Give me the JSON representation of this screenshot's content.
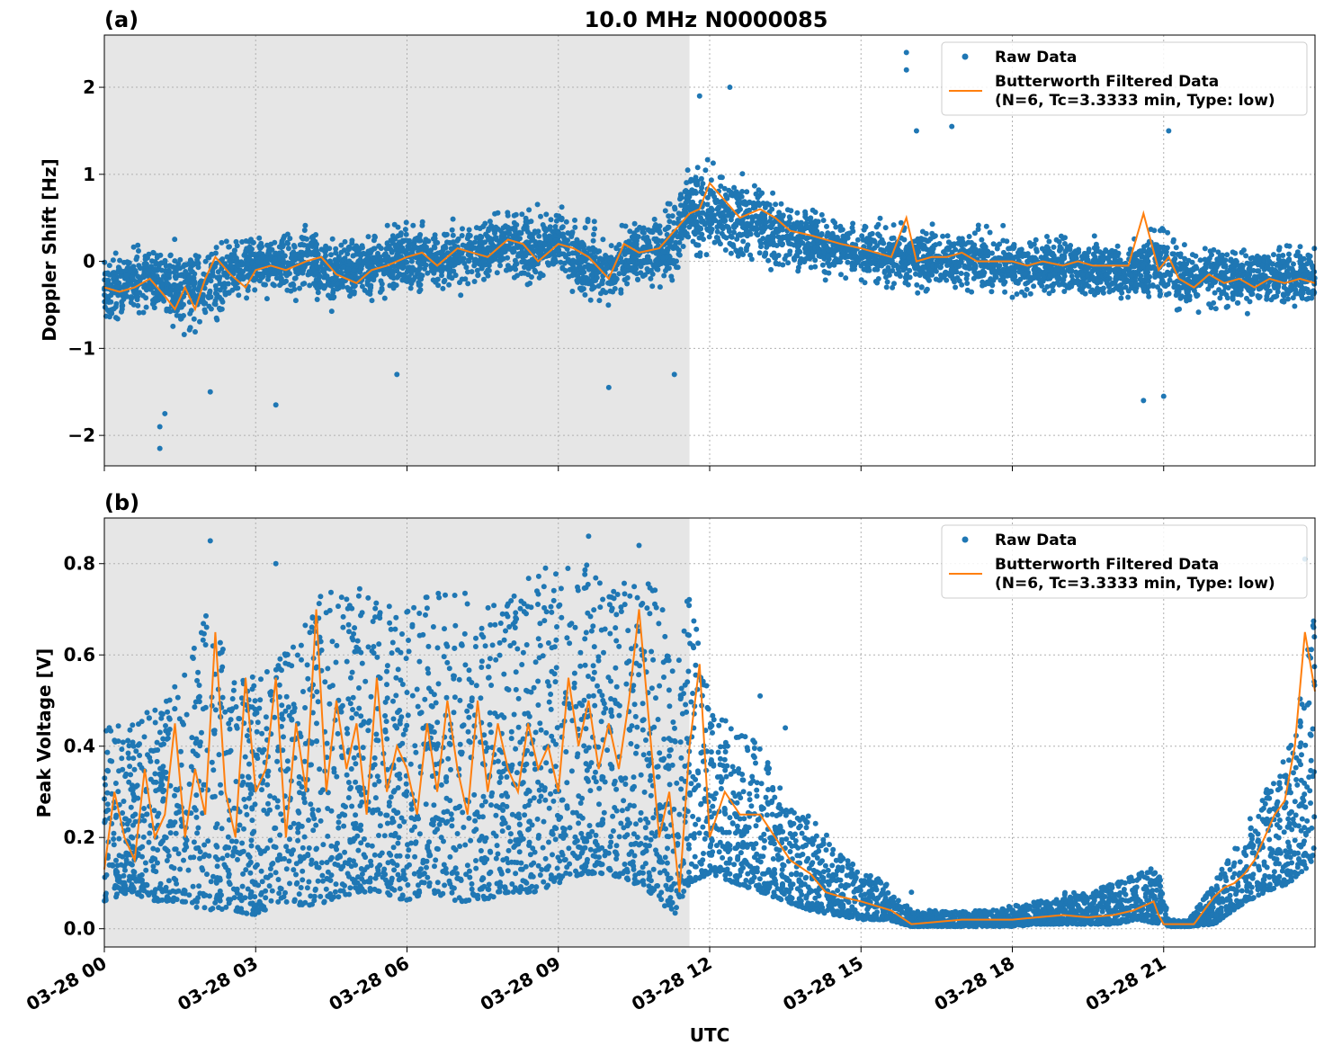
{
  "colors": {
    "raw": "#1f77b4",
    "filtered": "#ff7f0e",
    "night_shade": "#e6e6e6",
    "grid": "#b0b0b0"
  },
  "figure": {
    "title": "10.0 MHz N0000085",
    "xlabel": "UTC",
    "x_tick_labels": [
      "03-28 00",
      "03-28 03",
      "03-28 06",
      "03-28 09",
      "03-28 12",
      "03-28 15",
      "03-28 18",
      "03-28 21"
    ]
  },
  "legend": {
    "raw_label": "Raw Data",
    "filtered_label_line1": "Butterworth Filtered Data",
    "filtered_label_line2": "(N=6, Tc=3.3333 min, Type: low)"
  },
  "chart_data": [
    {
      "type": "scatter",
      "panel": "(a)",
      "title": "10.0 MHz N0000085",
      "xlabel": "UTC",
      "ylabel": "Doppler Shift [Hz]",
      "x_unit": "hours since 03-28 00 UTC",
      "xlim": [
        0,
        24
      ],
      "ylim": [
        -2.35,
        2.6
      ],
      "yticks": [
        -2,
        -1,
        0,
        1,
        2
      ],
      "y_tick_labels": [
        "−2",
        "−1",
        "0",
        "1",
        "2"
      ],
      "grid": true,
      "legend_position": "top-right",
      "shaded_interval": [
        0,
        11.6
      ],
      "series": [
        {
          "name": "Raw Data",
          "marker": "dot",
          "x": [
            0,
            0.5,
            1,
            1.5,
            2,
            2.5,
            3,
            3.5,
            4,
            4.5,
            5,
            5.5,
            6,
            6.5,
            7,
            7.5,
            8,
            8.5,
            9,
            9.5,
            10,
            10.5,
            11,
            11.3,
            11.6,
            12,
            12.5,
            13,
            13.5,
            14,
            14.5,
            15,
            15.5,
            16,
            16.5,
            17,
            17.5,
            18,
            18.5,
            19,
            19.5,
            20,
            20.5,
            21,
            21.5,
            22,
            22.5,
            23,
            23.5,
            24
          ],
          "center": [
            -0.3,
            -0.25,
            -0.2,
            -0.35,
            -0.3,
            -0.1,
            -0.05,
            -0.05,
            0,
            -0.15,
            -0.1,
            0,
            0.05,
            0.05,
            0,
            0.15,
            0.2,
            0.15,
            0.25,
            0,
            -0.15,
            0.15,
            0.1,
            0.25,
            0.6,
            0.55,
            0.5,
            0.45,
            0.3,
            0.25,
            0.15,
            0.1,
            0.05,
            0.05,
            0,
            0,
            0,
            -0.05,
            -0.05,
            -0.05,
            -0.1,
            -0.1,
            -0.1,
            0,
            -0.2,
            -0.15,
            -0.2,
            -0.15,
            -0.2,
            -0.2
          ],
          "spread": [
            0.45,
            0.45,
            0.5,
            0.55,
            0.6,
            0.45,
            0.4,
            0.4,
            0.45,
            0.45,
            0.45,
            0.45,
            0.45,
            0.45,
            0.45,
            0.45,
            0.45,
            0.45,
            0.45,
            0.55,
            0.45,
            0.45,
            0.5,
            0.55,
            0.6,
            0.6,
            0.6,
            0.55,
            0.5,
            0.45,
            0.4,
            0.4,
            0.45,
            0.45,
            0.4,
            0.4,
            0.4,
            0.4,
            0.4,
            0.4,
            0.4,
            0.4,
            0.4,
            0.6,
            0.45,
            0.45,
            0.45,
            0.45,
            0.45,
            0.45
          ],
          "outliers": [
            [
              1.1,
              -2.15
            ],
            [
              1.1,
              -1.9
            ],
            [
              1.2,
              -1.75
            ],
            [
              3.4,
              -1.65
            ],
            [
              2.1,
              -1.5
            ],
            [
              5.8,
              -1.3
            ],
            [
              11.3,
              -1.3
            ],
            [
              10.0,
              -1.45
            ],
            [
              15.9,
              2.4
            ],
            [
              15.9,
              2.2
            ],
            [
              16.1,
              1.5
            ],
            [
              16.8,
              1.55
            ],
            [
              20.6,
              -1.6
            ],
            [
              21.0,
              -1.55
            ],
            [
              21.1,
              1.5
            ],
            [
              12.4,
              2.0
            ],
            [
              11.8,
              1.9
            ]
          ]
        },
        {
          "name": "Butterworth Filtered Data (N=6, Tc=3.3333 min, Type: low)",
          "x": [
            0,
            0.3,
            0.6,
            0.9,
            1.2,
            1.4,
            1.6,
            1.8,
            2.0,
            2.2,
            2.5,
            2.8,
            3.0,
            3.3,
            3.6,
            4.0,
            4.3,
            4.6,
            5.0,
            5.3,
            5.6,
            6.0,
            6.3,
            6.6,
            7.0,
            7.3,
            7.6,
            8.0,
            8.3,
            8.6,
            9.0,
            9.3,
            9.6,
            10.0,
            10.3,
            10.6,
            11.0,
            11.3,
            11.6,
            11.8,
            12.0,
            12.3,
            12.6,
            13.0,
            13.3,
            13.6,
            14.0,
            14.3,
            14.6,
            15.0,
            15.3,
            15.6,
            15.9,
            16.1,
            16.4,
            16.7,
            17.0,
            17.3,
            17.6,
            18.0,
            18.3,
            18.6,
            19.0,
            19.3,
            19.6,
            20.0,
            20.3,
            20.6,
            20.9,
            21.1,
            21.3,
            21.6,
            21.9,
            22.2,
            22.5,
            22.8,
            23.1,
            23.4,
            23.7,
            24.0
          ],
          "y": [
            -0.3,
            -0.35,
            -0.3,
            -0.2,
            -0.4,
            -0.55,
            -0.3,
            -0.55,
            -0.2,
            0.05,
            -0.15,
            -0.3,
            -0.1,
            -0.05,
            -0.1,
            0,
            0.05,
            -0.15,
            -0.25,
            -0.1,
            -0.05,
            0.05,
            0.1,
            -0.05,
            0.15,
            0.1,
            0.05,
            0.25,
            0.2,
            0,
            0.2,
            0.15,
            0.05,
            -0.2,
            0.2,
            0.1,
            0.15,
            0.35,
            0.55,
            0.6,
            0.9,
            0.7,
            0.5,
            0.6,
            0.5,
            0.35,
            0.3,
            0.25,
            0.2,
            0.15,
            0.1,
            0.05,
            0.5,
            0,
            0.05,
            0.05,
            0.1,
            0,
            0,
            0,
            -0.05,
            0,
            -0.05,
            0,
            -0.05,
            -0.05,
            -0.05,
            0.55,
            -0.1,
            0.05,
            -0.2,
            -0.3,
            -0.15,
            -0.25,
            -0.2,
            -0.3,
            -0.2,
            -0.25,
            -0.2,
            -0.25
          ]
        }
      ]
    },
    {
      "type": "scatter",
      "panel": "(b)",
      "xlabel": "UTC",
      "ylabel": "Peak Voltage [V]",
      "x_unit": "hours since 03-28 00 UTC",
      "xlim": [
        0,
        24
      ],
      "ylim": [
        -0.04,
        0.9
      ],
      "yticks": [
        0.0,
        0.2,
        0.4,
        0.6,
        0.8
      ],
      "y_tick_labels": [
        "0.0",
        "0.2",
        "0.4",
        "0.6",
        "0.8"
      ],
      "grid": true,
      "legend_position": "top-right",
      "shaded_interval": [
        0,
        11.6
      ],
      "series": [
        {
          "name": "Raw Data",
          "marker": "dot",
          "x": [
            0,
            0.5,
            1,
            1.5,
            2,
            2.5,
            3,
            3.5,
            4,
            4.5,
            5,
            5.5,
            6,
            6.5,
            7,
            7.5,
            8,
            8.5,
            9,
            9.5,
            10,
            10.5,
            11,
            11.3,
            11.6,
            12,
            12.5,
            13,
            13.5,
            14,
            14.5,
            15,
            15.5,
            16,
            16.5,
            17,
            17.5,
            18,
            18.5,
            19,
            19.5,
            20,
            20.5,
            20.9,
            21.1,
            21.5,
            22,
            22.5,
            23,
            23.5,
            24
          ],
          "low": [
            0.06,
            0.08,
            0.06,
            0.06,
            0.04,
            0.04,
            0.03,
            0.06,
            0.05,
            0.06,
            0.08,
            0.08,
            0.06,
            0.08,
            0.06,
            0.06,
            0.08,
            0.08,
            0.1,
            0.12,
            0.12,
            0.1,
            0.06,
            0.03,
            0.1,
            0.12,
            0.1,
            0.08,
            0.06,
            0.04,
            0.03,
            0.02,
            0.02,
            0.005,
            0.005,
            0.005,
            0.005,
            0.005,
            0.01,
            0.01,
            0.01,
            0.01,
            0.02,
            0.01,
            0.005,
            0.005,
            0.01,
            0.05,
            0.08,
            0.1,
            0.15
          ],
          "high": [
            0.45,
            0.45,
            0.5,
            0.55,
            0.7,
            0.6,
            0.55,
            0.6,
            0.7,
            0.75,
            0.75,
            0.72,
            0.7,
            0.75,
            0.75,
            0.7,
            0.72,
            0.8,
            0.78,
            0.82,
            0.75,
            0.8,
            0.75,
            0.55,
            0.75,
            0.5,
            0.45,
            0.4,
            0.3,
            0.25,
            0.18,
            0.14,
            0.1,
            0.04,
            0.04,
            0.04,
            0.04,
            0.05,
            0.06,
            0.08,
            0.08,
            0.1,
            0.12,
            0.14,
            0.02,
            0.02,
            0.1,
            0.2,
            0.3,
            0.4,
            0.7
          ],
          "outliers": [
            [
              2.1,
              0.85
            ],
            [
              3.4,
              0.8
            ],
            [
              9.6,
              0.86
            ],
            [
              10.6,
              0.84
            ],
            [
              13.0,
              0.51
            ],
            [
              13.5,
              0.44
            ],
            [
              23.8,
              0.81
            ],
            [
              20.8,
              0.12
            ],
            [
              16.0,
              0.08
            ]
          ]
        },
        {
          "name": "Butterworth Filtered Data (N=6, Tc=3.3333 min, Type: low)",
          "x": [
            0,
            0.2,
            0.4,
            0.6,
            0.8,
            1.0,
            1.2,
            1.4,
            1.6,
            1.8,
            2.0,
            2.2,
            2.4,
            2.6,
            2.8,
            3.0,
            3.2,
            3.4,
            3.6,
            3.8,
            4.0,
            4.2,
            4.4,
            4.6,
            4.8,
            5.0,
            5.2,
            5.4,
            5.6,
            5.8,
            6.0,
            6.2,
            6.4,
            6.6,
            6.8,
            7.0,
            7.2,
            7.4,
            7.6,
            7.8,
            8.0,
            8.2,
            8.4,
            8.6,
            8.8,
            9.0,
            9.2,
            9.4,
            9.6,
            9.8,
            10.0,
            10.2,
            10.4,
            10.6,
            10.8,
            11.0,
            11.2,
            11.4,
            11.6,
            11.8,
            12.0,
            12.3,
            12.6,
            13.0,
            13.3,
            13.6,
            14.0,
            14.3,
            14.6,
            15.0,
            15.3,
            15.6,
            16.0,
            16.5,
            17.0,
            17.5,
            18.0,
            18.5,
            19.0,
            19.5,
            20.0,
            20.4,
            20.8,
            20.9,
            21.0,
            21.2,
            21.4,
            21.6,
            21.8,
            22.0,
            22.2,
            22.4,
            22.6,
            22.8,
            23.0,
            23.2,
            23.4,
            23.6,
            23.8,
            24.0
          ],
          "y": [
            0.13,
            0.3,
            0.2,
            0.15,
            0.35,
            0.2,
            0.25,
            0.45,
            0.2,
            0.35,
            0.25,
            0.65,
            0.3,
            0.2,
            0.55,
            0.3,
            0.35,
            0.55,
            0.2,
            0.45,
            0.3,
            0.7,
            0.3,
            0.5,
            0.35,
            0.45,
            0.25,
            0.55,
            0.3,
            0.4,
            0.35,
            0.25,
            0.45,
            0.3,
            0.5,
            0.35,
            0.25,
            0.5,
            0.3,
            0.45,
            0.35,
            0.3,
            0.45,
            0.35,
            0.4,
            0.3,
            0.55,
            0.4,
            0.5,
            0.35,
            0.45,
            0.35,
            0.5,
            0.7,
            0.45,
            0.2,
            0.3,
            0.08,
            0.4,
            0.58,
            0.2,
            0.3,
            0.25,
            0.25,
            0.2,
            0.15,
            0.12,
            0.08,
            0.07,
            0.06,
            0.05,
            0.04,
            0.01,
            0.015,
            0.02,
            0.02,
            0.02,
            0.025,
            0.03,
            0.025,
            0.03,
            0.04,
            0.06,
            0.03,
            0.01,
            0.01,
            0.01,
            0.01,
            0.04,
            0.07,
            0.09,
            0.1,
            0.12,
            0.15,
            0.2,
            0.25,
            0.28,
            0.4,
            0.65,
            0.52
          ]
        }
      ]
    }
  ]
}
